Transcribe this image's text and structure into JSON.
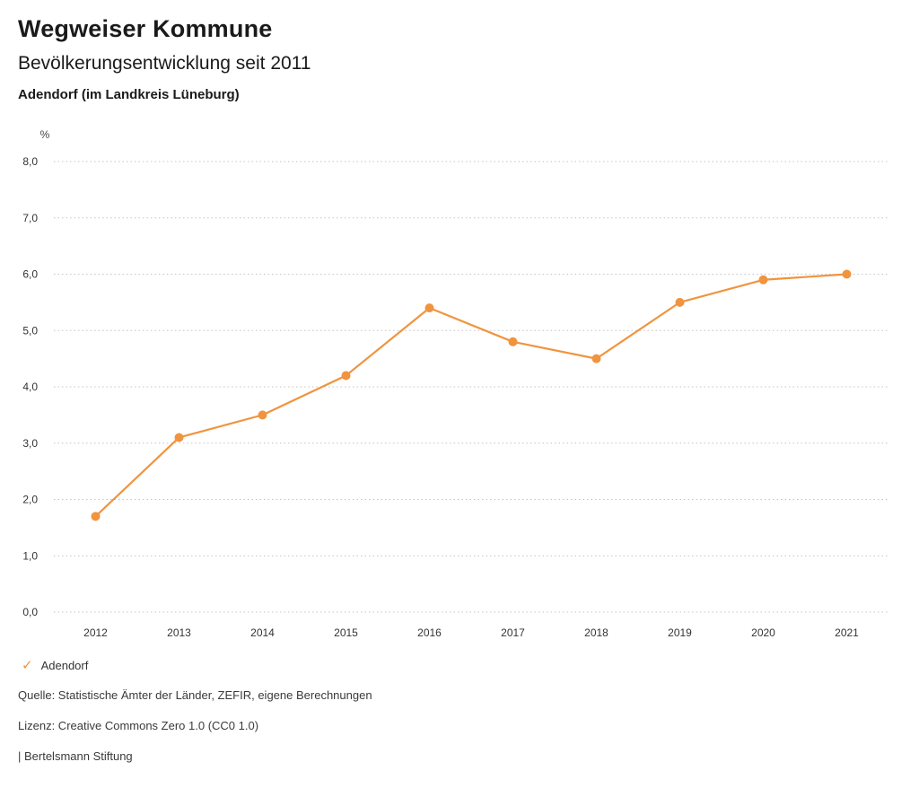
{
  "header": {
    "title": "Wegweiser Kommune",
    "subtitle": "Bevölkerungsentwicklung seit 2011",
    "region": "Adendorf (im Landkreis Lüneburg)"
  },
  "chart_data": {
    "type": "line",
    "title": "Bevölkerungsentwicklung seit 2011 — Adendorf (im Landkreis Lüneburg)",
    "unit_label": "%",
    "categories": [
      "2012",
      "2013",
      "2014",
      "2015",
      "2016",
      "2017",
      "2018",
      "2019",
      "2020",
      "2021"
    ],
    "series": [
      {
        "name": "Adendorf",
        "values": [
          1.7,
          3.1,
          3.5,
          4.2,
          5.4,
          4.8,
          4.5,
          5.5,
          5.9,
          6.0
        ]
      }
    ],
    "ylim": [
      0,
      8
    ],
    "ytick_step": 1,
    "ytick_labels": [
      "0,0",
      "1,0",
      "2,0",
      "3,0",
      "4,0",
      "5,0",
      "6,0",
      "7,0",
      "8,0"
    ],
    "grid": "horizontal-dotted",
    "line_color": "#f0943f",
    "marker": "circle",
    "legend_position": "bottom-left"
  },
  "legend": {
    "items": [
      {
        "label": "Adendorf",
        "color": "#f0943f",
        "icon": "check"
      }
    ]
  },
  "footer": {
    "source": "Quelle: Statistische Ämter der Länder, ZEFIR, eigene Berechnungen",
    "license": "Lizenz: Creative Commons Zero 1.0 (CC0 1.0)",
    "attribution": "| Bertelsmann Stiftung"
  }
}
